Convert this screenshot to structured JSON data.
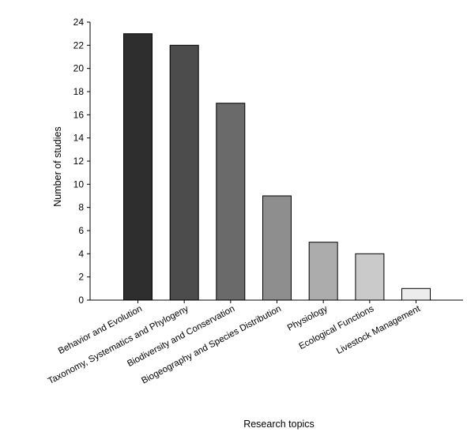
{
  "chart_data": {
    "type": "bar",
    "title": "",
    "xlabel": "Research topics",
    "ylabel": "Number of studies",
    "categories": [
      "Behavior and Evolution",
      "Taxonomy, Systematics and Phylogeny",
      "Biodiversity and Conservation",
      "Biogeography and Species Distribution",
      "Physiology",
      "Ecological Functions",
      "Livestock Management"
    ],
    "values": [
      23,
      22,
      17,
      9,
      5,
      4,
      1
    ],
    "bar_colors": [
      "#2e2e2e",
      "#4c4c4c",
      "#6a6a6a",
      "#8e8e8e",
      "#acacac",
      "#cacaca",
      "#ececec"
    ],
    "ylim": [
      0,
      24
    ],
    "yticks": [
      "0",
      "2",
      "4",
      "6",
      "8",
      "10",
      "12",
      "14",
      "16",
      "18",
      "20",
      "22",
      "24"
    ],
    "grid": false,
    "legend": "none"
  }
}
